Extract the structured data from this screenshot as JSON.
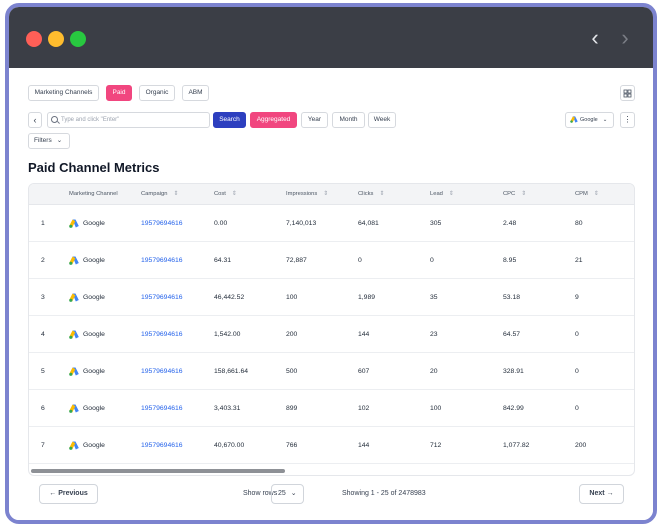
{
  "window": {
    "nav_back": "‹",
    "nav_forward": "›"
  },
  "channel_tabs": [
    {
      "label": "Marketing Channels",
      "active": false
    },
    {
      "label": "Paid",
      "active": true
    },
    {
      "label": "Organic",
      "active": false
    },
    {
      "label": "ABM",
      "active": false
    }
  ],
  "toolbar": {
    "back_label": "‹",
    "search_placeholder": "Type and click \"Enter\"",
    "search_button": "Search",
    "aggregated_button": "Aggregated",
    "period_buttons": [
      "Year",
      "Month",
      "Week"
    ],
    "source_select": "Google",
    "more_label": "⋮",
    "filters_label": "Filters"
  },
  "page_title": "Paid Channel Metrics",
  "table": {
    "columns": [
      "Marketing Channel",
      "Campaign",
      "Cost",
      "Impressions",
      "Clicks",
      "Lead",
      "CPC",
      "CPM"
    ],
    "rows": [
      {
        "num": "1",
        "channel": "Google",
        "campaign": "19579694616",
        "cost": "0.00",
        "impressions": "7,140,013",
        "clicks": "64,081",
        "lead": "305",
        "cpc": "2.48",
        "cpm": "80"
      },
      {
        "num": "2",
        "channel": "Google",
        "campaign": "19579694616",
        "cost": "64.31",
        "impressions": "72,887",
        "clicks": "0",
        "lead": "0",
        "cpc": "8.95",
        "cpm": "21"
      },
      {
        "num": "3",
        "channel": "Google",
        "campaign": "19579694616",
        "cost": "46,442.52",
        "impressions": "100",
        "clicks": "1,989",
        "lead": "35",
        "cpc": "53.18",
        "cpm": "9"
      },
      {
        "num": "4",
        "channel": "Google",
        "campaign": "19579694616",
        "cost": "1,542.00",
        "impressions": "200",
        "clicks": "144",
        "lead": "23",
        "cpc": "64.57",
        "cpm": "0"
      },
      {
        "num": "5",
        "channel": "Google",
        "campaign": "19579694616",
        "cost": "158,661.64",
        "impressions": "500",
        "clicks": "607",
        "lead": "20",
        "cpc": "328.91",
        "cpm": "0"
      },
      {
        "num": "6",
        "channel": "Google",
        "campaign": "19579694616",
        "cost": "3,403.31",
        "impressions": "899",
        "clicks": "102",
        "lead": "100",
        "cpc": "842.99",
        "cpm": "0"
      },
      {
        "num": "7",
        "channel": "Google",
        "campaign": "19579694616",
        "cost": "40,670.00",
        "impressions": "766",
        "clicks": "144",
        "lead": "712",
        "cpc": "1,077.82",
        "cpm": "200"
      }
    ]
  },
  "pagination": {
    "previous": "Previous",
    "show_rows_label": "Show rows",
    "rows_value": "25",
    "showing_text": "Showing 1 - 25 of 2478983",
    "next": "Next"
  },
  "colors": {
    "accent_pink": "#f1467f",
    "accent_blue": "#2d3fbf",
    "frame": "#7c83cf",
    "link": "#2563eb"
  }
}
